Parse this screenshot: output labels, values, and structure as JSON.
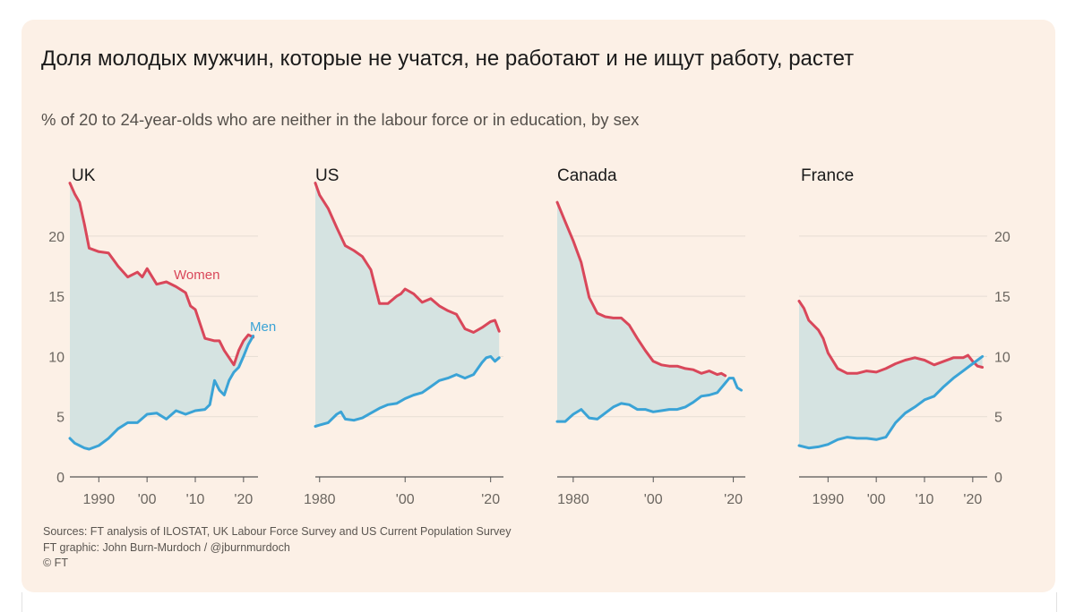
{
  "title": "Доля молодых мужчин, которые не учатся, не работают и не ищут работу, растет",
  "subtitle": "% of 20 to 24-year-olds who are neither in the labour force or in education, by sex",
  "sources": [
    "Sources: FT analysis of ILOSTAT, UK Labour Force Survey and US Current Population Survey",
    "FT graphic: John Burn-Murdoch / @jburnmurdoch",
    "© FT"
  ],
  "colors": {
    "background": "#fcf0e6",
    "women": "#d9475a",
    "men": "#3aa3d6",
    "fill": "#d5e3e1",
    "grid": "#e6ddd4",
    "axis": "#555555"
  },
  "chart_data": [
    {
      "type": "line",
      "panel": "UK",
      "xlim": [
        1984,
        2023
      ],
      "ylim": [
        0,
        24
      ],
      "y_ticks": [
        0,
        5,
        10,
        15,
        20
      ],
      "y_tick_labels": [
        "0",
        "5",
        "10",
        "15",
        "20"
      ],
      "y_axis_side": "left",
      "x_ticks": [
        1990,
        2000,
        2010,
        2020
      ],
      "x_tick_labels": [
        "1990",
        "'00",
        "'10",
        "'20"
      ],
      "series": [
        {
          "name": "Women",
          "x": [
            1984,
            1985,
            1986,
            1987,
            1988,
            1990,
            1992,
            1994,
            1996,
            1998,
            1999,
            2000,
            2002,
            2004,
            2006,
            2008,
            2009,
            2010,
            2012,
            2014,
            2015,
            2016,
            2018,
            2019,
            2020,
            2021,
            2022
          ],
          "y": [
            24.4,
            23.5,
            22.8,
            21,
            19,
            18.7,
            18.6,
            17.5,
            16.6,
            17.0,
            16.6,
            17.3,
            16,
            16.2,
            15.8,
            15.3,
            14.2,
            13.9,
            11.5,
            11.3,
            11.3,
            10.5,
            9.3,
            10.5,
            11.3,
            11.8,
            11.6
          ]
        },
        {
          "name": "Men",
          "x": [
            1984,
            1985,
            1986,
            1987,
            1988,
            1990,
            1992,
            1994,
            1996,
            1998,
            2000,
            2002,
            2004,
            2006,
            2008,
            2010,
            2012,
            2013,
            2014,
            2015,
            2016,
            2017,
            2018,
            2019,
            2020,
            2021,
            2022
          ],
          "y": [
            3.2,
            2.8,
            2.6,
            2.4,
            2.3,
            2.6,
            3.2,
            4.0,
            4.5,
            4.5,
            5.2,
            5.3,
            4.8,
            5.5,
            5.2,
            5.5,
            5.6,
            6,
            8,
            7.2,
            6.8,
            8,
            8.7,
            9.1,
            10,
            11,
            11.7
          ]
        }
      ]
    },
    {
      "type": "line",
      "panel": "US",
      "xlim": [
        1979,
        2023
      ],
      "ylim": [
        0,
        24
      ],
      "y_ticks": [
        0,
        5,
        10,
        15,
        20
      ],
      "x_ticks": [
        1980,
        2000,
        2020
      ],
      "x_tick_labels": [
        "1980",
        "'00",
        "'20"
      ],
      "series": [
        {
          "name": "Women",
          "x": [
            1979,
            1980,
            1982,
            1984,
            1986,
            1988,
            1990,
            1992,
            1994,
            1996,
            1998,
            1999,
            2000,
            2002,
            2004,
            2006,
            2008,
            2010,
            2012,
            2014,
            2016,
            2018,
            2020,
            2021,
            2022
          ],
          "y": [
            24.4,
            23.4,
            22.3,
            20.7,
            19.2,
            18.8,
            18.3,
            17.2,
            14.4,
            14.4,
            15.0,
            15.2,
            15.6,
            15.2,
            14.5,
            14.8,
            14.2,
            13.8,
            13.5,
            12.3,
            12.0,
            12.4,
            12.9,
            13.0,
            12.1
          ]
        },
        {
          "name": "Men",
          "x": [
            1979,
            1980,
            1982,
            1984,
            1985,
            1986,
            1988,
            1990,
            1992,
            1994,
            1996,
            1998,
            2000,
            2002,
            2004,
            2006,
            2008,
            2010,
            2012,
            2014,
            2016,
            2018,
            2019,
            2020,
            2021,
            2022
          ],
          "y": [
            4.2,
            4.3,
            4.5,
            5.2,
            5.4,
            4.8,
            4.7,
            4.9,
            5.3,
            5.7,
            6.0,
            6.1,
            6.5,
            6.8,
            7.0,
            7.5,
            8.0,
            8.2,
            8.5,
            8.2,
            8.5,
            9.5,
            9.9,
            10.0,
            9.6,
            9.9
          ]
        }
      ]
    },
    {
      "type": "line",
      "panel": "Canada",
      "xlim": [
        1976,
        2023
      ],
      "ylim": [
        0,
        24
      ],
      "y_ticks": [
        0,
        5,
        10,
        15,
        20
      ],
      "x_ticks": [
        1980,
        2000,
        2020
      ],
      "x_tick_labels": [
        "1980",
        "'00",
        "'20"
      ],
      "series": [
        {
          "name": "Women",
          "x": [
            1976,
            1978,
            1980,
            1982,
            1984,
            1986,
            1988,
            1990,
            1992,
            1994,
            1996,
            1998,
            2000,
            2002,
            2004,
            2006,
            2008,
            2010,
            2012,
            2014,
            2016,
            2017,
            2018
          ],
          "y": [
            22.8,
            21.2,
            19.6,
            17.8,
            14.9,
            13.6,
            13.3,
            13.2,
            13.2,
            12.6,
            11.5,
            10.5,
            9.6,
            9.3,
            9.2,
            9.2,
            9.0,
            8.9,
            8.6,
            8.8,
            8.5,
            8.6,
            8.4
          ]
        },
        {
          "name": "Men",
          "x": [
            1976,
            1978,
            1980,
            1982,
            1984,
            1986,
            1988,
            1990,
            1992,
            1994,
            1996,
            1998,
            2000,
            2002,
            2004,
            2006,
            2008,
            2010,
            2012,
            2014,
            2016,
            2018,
            2019,
            2020,
            2021,
            2022
          ],
          "y": [
            4.6,
            4.6,
            5.2,
            5.6,
            4.9,
            4.8,
            5.3,
            5.8,
            6.1,
            6.0,
            5.6,
            5.6,
            5.4,
            5.5,
            5.6,
            5.6,
            5.8,
            6.2,
            6.7,
            6.8,
            7.0,
            7.8,
            8.2,
            8.2,
            7.4,
            7.2
          ]
        }
      ]
    },
    {
      "type": "line",
      "panel": "France",
      "xlim": [
        1984,
        2023
      ],
      "ylim": [
        0,
        24
      ],
      "y_ticks": [
        0,
        5,
        10,
        15,
        20
      ],
      "y_tick_labels": [
        "0",
        "5",
        "10",
        "15",
        "20"
      ],
      "y_axis_side": "right",
      "x_ticks": [
        1990,
        2000,
        2010,
        2020
      ],
      "x_tick_labels": [
        "1990",
        "'00",
        "'10",
        "'20"
      ],
      "series": [
        {
          "name": "Women",
          "x": [
            1984,
            1985,
            1986,
            1988,
            1989,
            1990,
            1992,
            1994,
            1996,
            1998,
            2000,
            2002,
            2004,
            2006,
            2008,
            2010,
            2012,
            2014,
            2016,
            2018,
            2019,
            2020,
            2021,
            2022
          ],
          "y": [
            14.6,
            14.0,
            13.0,
            12.2,
            11.5,
            10.3,
            9.0,
            8.6,
            8.6,
            8.8,
            8.7,
            9.0,
            9.4,
            9.7,
            9.9,
            9.7,
            9.3,
            9.6,
            9.9,
            9.9,
            10.1,
            9.6,
            9.2,
            9.1
          ]
        },
        {
          "name": "Men",
          "x": [
            1984,
            1986,
            1988,
            1990,
            1992,
            1994,
            1996,
            1998,
            2000,
            2002,
            2004,
            2006,
            2008,
            2010,
            2012,
            2014,
            2016,
            2018,
            2020,
            2022
          ],
          "y": [
            2.6,
            2.4,
            2.5,
            2.7,
            3.1,
            3.3,
            3.2,
            3.2,
            3.1,
            3.3,
            4.5,
            5.3,
            5.8,
            6.4,
            6.7,
            7.5,
            8.2,
            8.8,
            9.4,
            10.0
          ]
        }
      ]
    }
  ]
}
